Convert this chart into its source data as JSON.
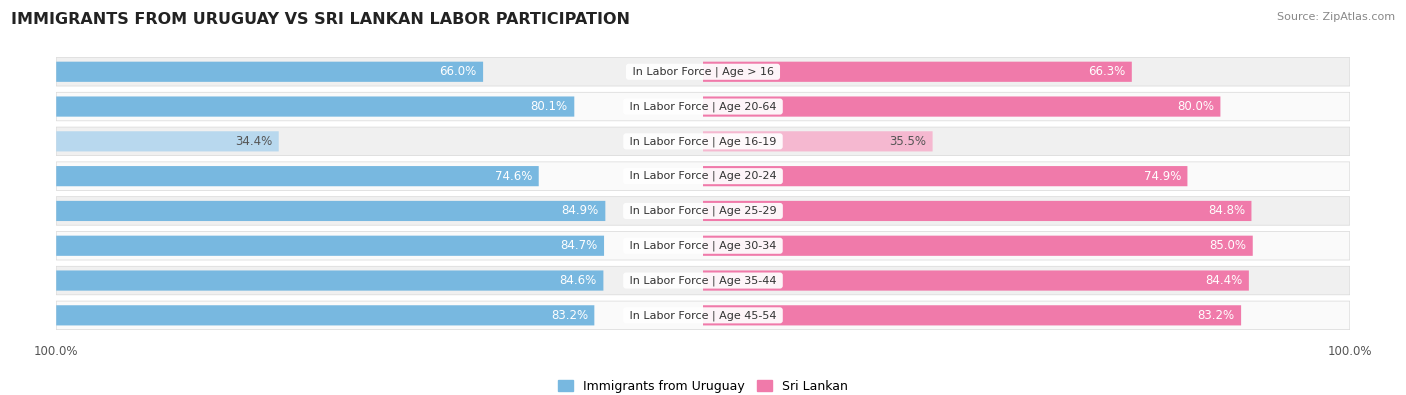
{
  "title": "IMMIGRANTS FROM URUGUAY VS SRI LANKAN LABOR PARTICIPATION",
  "source": "Source: ZipAtlas.com",
  "categories": [
    "In Labor Force | Age > 16",
    "In Labor Force | Age 20-64",
    "In Labor Force | Age 16-19",
    "In Labor Force | Age 20-24",
    "In Labor Force | Age 25-29",
    "In Labor Force | Age 30-34",
    "In Labor Force | Age 35-44",
    "In Labor Force | Age 45-54"
  ],
  "uruguay_values": [
    66.0,
    80.1,
    34.4,
    74.6,
    84.9,
    84.7,
    84.6,
    83.2
  ],
  "srilanka_values": [
    66.3,
    80.0,
    35.5,
    74.9,
    84.8,
    85.0,
    84.4,
    83.2
  ],
  "uruguay_color": "#78b8e0",
  "uruguay_color_light": "#b8d8ee",
  "srilanka_color": "#f07aaa",
  "srilanka_color_light": "#f5b8d0",
  "row_bg_even": "#f0f0f0",
  "row_bg_odd": "#fafafa",
  "label_white": "#ffffff",
  "label_dark": "#555555",
  "max_value": 100.0,
  "legend_uruguay": "Immigrants from Uruguay",
  "legend_srilanka": "Sri Lankan",
  "title_fontsize": 11.5,
  "label_fontsize": 8.5,
  "category_fontsize": 8.0,
  "tick_fontsize": 8.5
}
